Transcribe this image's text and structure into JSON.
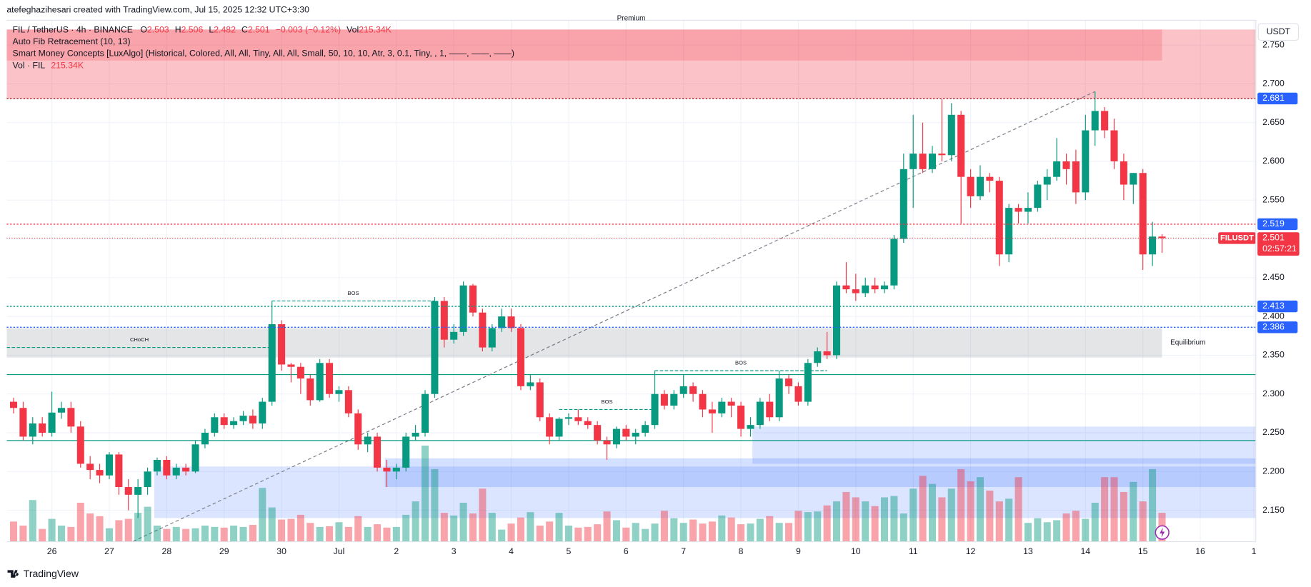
{
  "chart_data": {
    "type": "candlestick",
    "note": "atefeghazihesari created with TradingView.com, Jul 15, 2025 12:32 UTC+3:30",
    "title": "FIL / TetherUS · 4h · BINANCE",
    "legend_keys": [
      "O",
      "H",
      "L",
      "C"
    ],
    "change": "−0.003 (−0.12%)",
    "volume_key": "Vol",
    "volume_label": "215.34K",
    "indicators": [
      "Auto Fib Retracement (10, 13)",
      "Smart Money Concepts [LuxAlgo] (Historical, Colored, All, All, Tiny, All, All, Small, 50, 10, 10, Atr, 3, 0.1, Tiny, , 1, ——, ——, ——)"
    ],
    "volume_title": "Vol · FIL",
    "currency": "USDT",
    "branding": "TradingView",
    "up_color": "#089981",
    "down_color": "#f23645",
    "grid": true,
    "xlim": [
      -0.72,
      129.8
    ],
    "xticks": [
      {
        "value": 4,
        "label": "26"
      },
      {
        "value": 10,
        "label": "27"
      },
      {
        "value": 16,
        "label": "28"
      },
      {
        "value": 22,
        "label": "29"
      },
      {
        "value": 28,
        "label": "30"
      },
      {
        "value": 34,
        "label": "Jul"
      },
      {
        "value": 40,
        "label": "2"
      },
      {
        "value": 46,
        "label": "3"
      },
      {
        "value": 52,
        "label": "4"
      },
      {
        "value": 58,
        "label": "5"
      },
      {
        "value": 64,
        "label": "6"
      },
      {
        "value": 70,
        "label": "7"
      },
      {
        "value": 76,
        "label": "8"
      },
      {
        "value": 82,
        "label": "9"
      },
      {
        "value": 88,
        "label": "10"
      },
      {
        "value": 94,
        "label": "11"
      },
      {
        "value": 100,
        "label": "12"
      },
      {
        "value": 106,
        "label": "13"
      },
      {
        "value": 112,
        "label": "14"
      },
      {
        "value": 118,
        "label": "15"
      },
      {
        "value": 124,
        "label": "16"
      },
      {
        "value": 129.6,
        "label": "1"
      }
    ],
    "ylim": [
      2.1095,
      2.782
    ],
    "yticks": [
      {
        "value": 2.15,
        "label": "2.150"
      },
      {
        "value": 2.2,
        "label": "2.200"
      },
      {
        "value": 2.25,
        "label": "2.250"
      },
      {
        "value": 2.3,
        "label": "2.300"
      },
      {
        "value": 2.35,
        "label": "2.350"
      },
      {
        "value": 2.4,
        "label": "2.400"
      },
      {
        "value": 2.45,
        "label": "2.450"
      },
      {
        "value": 2.5,
        "label": "2.500"
      },
      {
        "value": 2.55,
        "label": "2.550"
      },
      {
        "value": 2.6,
        "label": "2.600"
      },
      {
        "value": 2.65,
        "label": "2.650"
      },
      {
        "value": 2.7,
        "label": "2.700"
      },
      {
        "value": 2.75,
        "label": "2.750"
      }
    ],
    "x": [
      0,
      1,
      2,
      3,
      4,
      5,
      6,
      7,
      8,
      9,
      10,
      11,
      12,
      13,
      14,
      15,
      16,
      17,
      18,
      19,
      20,
      21,
      22,
      23,
      24,
      25,
      26,
      27,
      28,
      29,
      30,
      31,
      32,
      33,
      34,
      35,
      36,
      37,
      38,
      39,
      40,
      41,
      42,
      43,
      44,
      45,
      46,
      47,
      48,
      49,
      50,
      51,
      52,
      53,
      54,
      55,
      56,
      57,
      58,
      59,
      60,
      61,
      62,
      63,
      64,
      65,
      66,
      67,
      68,
      69,
      70,
      71,
      72,
      73,
      74,
      75,
      76,
      77,
      78,
      79,
      80,
      81,
      82,
      83,
      84,
      85,
      86,
      87,
      88,
      89,
      90,
      91,
      92,
      93,
      94,
      95,
      96,
      97,
      98,
      99,
      100,
      101,
      102,
      103,
      104,
      105,
      106,
      107,
      108,
      109,
      110,
      111,
      112,
      113,
      114,
      115,
      116,
      117,
      118,
      119,
      120
    ],
    "ohlc": [
      [
        2.29,
        2.295,
        2.275,
        2.282
      ],
      [
        2.282,
        2.29,
        2.24,
        2.245
      ],
      [
        2.245,
        2.27,
        2.235,
        2.262
      ],
      [
        2.262,
        2.27,
        2.245,
        2.25
      ],
      [
        2.25,
        2.303,
        2.245,
        2.276
      ],
      [
        2.276,
        2.29,
        2.268,
        2.282
      ],
      [
        2.282,
        2.29,
        2.25,
        2.258
      ],
      [
        2.258,
        2.265,
        2.205,
        2.21
      ],
      [
        2.21,
        2.22,
        2.19,
        2.202
      ],
      [
        2.202,
        2.21,
        2.185,
        2.195
      ],
      [
        2.195,
        2.225,
        2.19,
        2.222
      ],
      [
        2.222,
        2.225,
        2.17,
        2.18
      ],
      [
        2.18,
        2.19,
        2.15,
        2.17
      ],
      [
        2.17,
        2.19,
        2.14,
        2.18
      ],
      [
        2.18,
        2.205,
        2.17,
        2.2
      ],
      [
        2.2,
        2.218,
        2.195,
        2.215
      ],
      [
        2.215,
        2.22,
        2.19,
        2.195
      ],
      [
        2.195,
        2.21,
        2.19,
        2.205
      ],
      [
        2.205,
        2.21,
        2.195,
        2.2
      ],
      [
        2.2,
        2.24,
        2.198,
        2.235
      ],
      [
        2.235,
        2.255,
        2.23,
        2.25
      ],
      [
        2.25,
        2.275,
        2.245,
        2.27
      ],
      [
        2.27,
        2.275,
        2.255,
        2.26
      ],
      [
        2.26,
        2.27,
        2.255,
        2.265
      ],
      [
        2.265,
        2.278,
        2.26,
        2.272
      ],
      [
        2.272,
        2.28,
        2.255,
        2.262
      ],
      [
        2.262,
        2.295,
        2.255,
        2.29
      ],
      [
        2.29,
        2.42,
        2.285,
        2.39
      ],
      [
        2.39,
        2.395,
        2.33,
        2.338
      ],
      [
        2.338,
        2.34,
        2.315,
        2.335
      ],
      [
        2.335,
        2.34,
        2.3,
        2.32
      ],
      [
        2.32,
        2.325,
        2.285,
        2.292
      ],
      [
        2.292,
        2.345,
        2.29,
        2.34
      ],
      [
        2.34,
        2.345,
        2.295,
        2.3
      ],
      [
        2.3,
        2.31,
        2.29,
        2.305
      ],
      [
        2.305,
        2.31,
        2.27,
        2.275
      ],
      [
        2.275,
        2.28,
        2.228,
        2.235
      ],
      [
        2.235,
        2.25,
        2.225,
        2.245
      ],
      [
        2.245,
        2.25,
        2.2,
        2.205
      ],
      [
        2.205,
        2.215,
        2.18,
        2.2
      ],
      [
        2.2,
        2.21,
        2.19,
        2.205
      ],
      [
        2.205,
        2.25,
        2.2,
        2.245
      ],
      [
        2.245,
        2.26,
        2.24,
        2.25
      ],
      [
        2.25,
        2.305,
        2.245,
        2.3
      ],
      [
        2.3,
        2.425,
        2.295,
        2.42
      ],
      [
        2.42,
        2.425,
        2.36,
        2.37
      ],
      [
        2.37,
        2.39,
        2.365,
        2.38
      ],
      [
        2.38,
        2.445,
        2.375,
        2.44
      ],
      [
        2.44,
        2.442,
        2.4,
        2.405
      ],
      [
        2.405,
        2.41,
        2.355,
        2.36
      ],
      [
        2.36,
        2.39,
        2.355,
        2.385
      ],
      [
        2.385,
        2.41,
        2.38,
        2.4
      ],
      [
        2.4,
        2.41,
        2.38,
        2.385
      ],
      [
        2.385,
        2.39,
        2.305,
        2.31
      ],
      [
        2.31,
        2.325,
        2.305,
        2.315
      ],
      [
        2.315,
        2.32,
        2.265,
        2.27
      ],
      [
        2.27,
        2.275,
        2.235,
        2.245
      ],
      [
        2.245,
        2.27,
        2.24,
        2.268
      ],
      [
        2.268,
        2.275,
        2.26,
        2.27
      ],
      [
        2.27,
        2.28,
        2.26,
        2.265
      ],
      [
        2.265,
        2.27,
        2.255,
        2.26
      ],
      [
        2.26,
        2.265,
        2.235,
        2.24
      ],
      [
        2.24,
        2.245,
        2.215,
        2.235
      ],
      [
        2.235,
        2.258,
        2.23,
        2.255
      ],
      [
        2.255,
        2.26,
        2.24,
        2.245
      ],
      [
        2.245,
        2.255,
        2.235,
        2.25
      ],
      [
        2.25,
        2.265,
        2.245,
        2.26
      ],
      [
        2.26,
        2.33,
        2.255,
        2.3
      ],
      [
        2.3,
        2.305,
        2.28,
        2.285
      ],
      [
        2.285,
        2.305,
        2.28,
        2.3
      ],
      [
        2.3,
        2.325,
        2.295,
        2.31
      ],
      [
        2.31,
        2.315,
        2.29,
        2.3
      ],
      [
        2.3,
        2.305,
        2.27,
        2.28
      ],
      [
        2.28,
        2.29,
        2.25,
        2.275
      ],
      [
        2.275,
        2.295,
        2.27,
        2.29
      ],
      [
        2.29,
        2.295,
        2.27,
        2.285
      ],
      [
        2.285,
        2.29,
        2.245,
        2.255
      ],
      [
        2.255,
        2.27,
        2.245,
        2.26
      ],
      [
        2.26,
        2.295,
        2.255,
        2.29
      ],
      [
        2.29,
        2.3,
        2.265,
        2.27
      ],
      [
        2.27,
        2.33,
        2.265,
        2.32
      ],
      [
        2.32,
        2.325,
        2.3,
        2.31
      ],
      [
        2.31,
        2.315,
        2.285,
        2.29
      ],
      [
        2.29,
        2.345,
        2.285,
        2.34
      ],
      [
        2.34,
        2.36,
        2.335,
        2.355
      ],
      [
        2.355,
        2.38,
        2.345,
        2.35
      ],
      [
        2.35,
        2.445,
        2.345,
        2.44
      ],
      [
        2.44,
        2.47,
        2.43,
        2.435
      ],
      [
        2.435,
        2.455,
        2.42,
        2.43
      ],
      [
        2.43,
        2.45,
        2.425,
        2.44
      ],
      [
        2.44,
        2.45,
        2.43,
        2.435
      ],
      [
        2.435,
        2.445,
        2.43,
        2.44
      ],
      [
        2.44,
        2.505,
        2.435,
        2.5
      ],
      [
        2.5,
        2.61,
        2.495,
        2.59
      ],
      [
        2.59,
        2.66,
        2.54,
        2.61
      ],
      [
        2.61,
        2.65,
        2.585,
        2.59
      ],
      [
        2.59,
        2.62,
        2.585,
        2.61
      ],
      [
        2.61,
        2.68,
        2.6,
        2.608
      ],
      [
        2.608,
        2.675,
        2.6,
        2.66
      ],
      [
        2.66,
        2.665,
        2.52,
        2.58
      ],
      [
        2.58,
        2.59,
        2.54,
        2.555
      ],
      [
        2.555,
        2.595,
        2.55,
        2.58
      ],
      [
        2.58,
        2.585,
        2.56,
        2.575
      ],
      [
        2.575,
        2.58,
        2.465,
        2.48
      ],
      [
        2.48,
        2.545,
        2.47,
        2.54
      ],
      [
        2.54,
        2.545,
        2.52,
        2.535
      ],
      [
        2.535,
        2.56,
        2.52,
        2.54
      ],
      [
        2.54,
        2.575,
        2.535,
        2.57
      ],
      [
        2.57,
        2.59,
        2.55,
        2.58
      ],
      [
        2.58,
        2.63,
        2.575,
        2.6
      ],
      [
        2.6,
        2.61,
        2.57,
        2.59
      ],
      [
        2.6,
        2.615,
        2.545,
        2.56
      ],
      [
        2.56,
        2.66,
        2.55,
        2.64
      ],
      [
        2.64,
        2.69,
        2.62,
        2.665
      ],
      [
        2.665,
        2.67,
        2.63,
        2.64
      ],
      [
        2.64,
        2.655,
        2.59,
        2.6
      ],
      [
        2.6,
        2.61,
        2.55,
        2.57
      ],
      [
        2.57,
        2.585,
        2.545,
        2.585
      ],
      [
        2.585,
        2.59,
        2.46,
        2.48
      ],
      [
        2.48,
        2.522,
        2.465,
        2.503
      ],
      [
        2.503,
        2.506,
        2.482,
        2.501
      ]
    ],
    "volume": [
      150,
      120,
      310,
      95,
      170,
      120,
      110,
      290,
      210,
      190,
      100,
      160,
      170,
      215,
      260,
      120,
      95,
      110,
      95,
      100,
      120,
      110,
      105,
      120,
      110,
      125,
      400,
      255,
      165,
      170,
      200,
      140,
      110,
      115,
      145,
      110,
      190,
      110,
      130,
      105,
      110,
      200,
      300,
      715,
      540,
      215,
      195,
      290,
      210,
      395,
      215,
      90,
      135,
      180,
      220,
      120,
      150,
      215,
      120,
      105,
      110,
      130,
      225,
      160,
      105,
      140,
      95,
      135,
      230,
      175,
      140,
      165,
      135,
      150,
      195,
      180,
      130,
      135,
      170,
      190,
      140,
      140,
      230,
      220,
      225,
      270,
      300,
      370,
      330,
      300,
      265,
      330,
      340,
      210,
      395,
      490,
      430,
      330,
      395,
      540,
      450,
      480,
      380,
      300,
      320,
      480,
      140,
      175,
      145,
      160,
      210,
      230,
      170,
      290,
      480,
      480,
      370,
      445,
      300,
      540,
      215.34
    ],
    "zones": [
      {
        "label": "Premium",
        "top": 2.77,
        "bottom": 2.681,
        "x": [
          -0.72,
          129.8
        ],
        "color": "rgba(242,54,69,0.3)"
      },
      {
        "top": 2.77,
        "bottom": 2.73,
        "x": [
          -0.72,
          120
        ],
        "color": "rgba(242,54,69,0.22)"
      },
      {
        "label": "Equilibrium",
        "top": 2.385,
        "bottom": 2.347,
        "x": [
          -0.72,
          120
        ],
        "color": "rgba(120,123,134,0.2)"
      },
      {
        "top": 2.2065,
        "bottom": 2.14,
        "x": [
          14.7,
          129.8
        ],
        "color": "rgba(41,98,255,0.17)"
      },
      {
        "top": 2.217,
        "bottom": 2.18,
        "x": [
          38.8,
          129.8
        ],
        "color": "rgba(41,98,255,0.2)"
      },
      {
        "top": 2.258,
        "bottom": 2.21,
        "x": [
          77.2,
          129.8
        ],
        "color": "rgba(41,98,255,0.17)"
      }
    ],
    "levels": [
      2.325,
      2.24
    ],
    "structure": [
      {
        "label": "BOS",
        "price": 2.42,
        "x": [
          27,
          44
        ]
      },
      {
        "label": "BOS",
        "price": 2.28,
        "x": [
          57,
          67
        ]
      },
      {
        "label": "BOS",
        "price": 2.33,
        "x": [
          67,
          85
        ]
      },
      {
        "label": "CHoCH",
        "price": 2.36,
        "x": [
          -0.72,
          27
        ]
      }
    ],
    "fib": {
      "x": [
        12.5,
        113
      ],
      "y": [
        2.11,
        2.69
      ]
    },
    "price_labels": [
      {
        "value": 2.681,
        "color": "#2962ff",
        "line_color": "#b22833"
      },
      {
        "value": 2.519,
        "color": "#2962ff",
        "line_color": "#f23645"
      },
      {
        "value": 2.413,
        "color": "#2962ff",
        "line_color": "#089981"
      },
      {
        "value": 2.386,
        "color": "#2962ff",
        "line_color": "#2962ff"
      }
    ],
    "current": {
      "symbol": "FILUSDT",
      "countdown": "02:57:21",
      "color": "#f23645"
    }
  }
}
